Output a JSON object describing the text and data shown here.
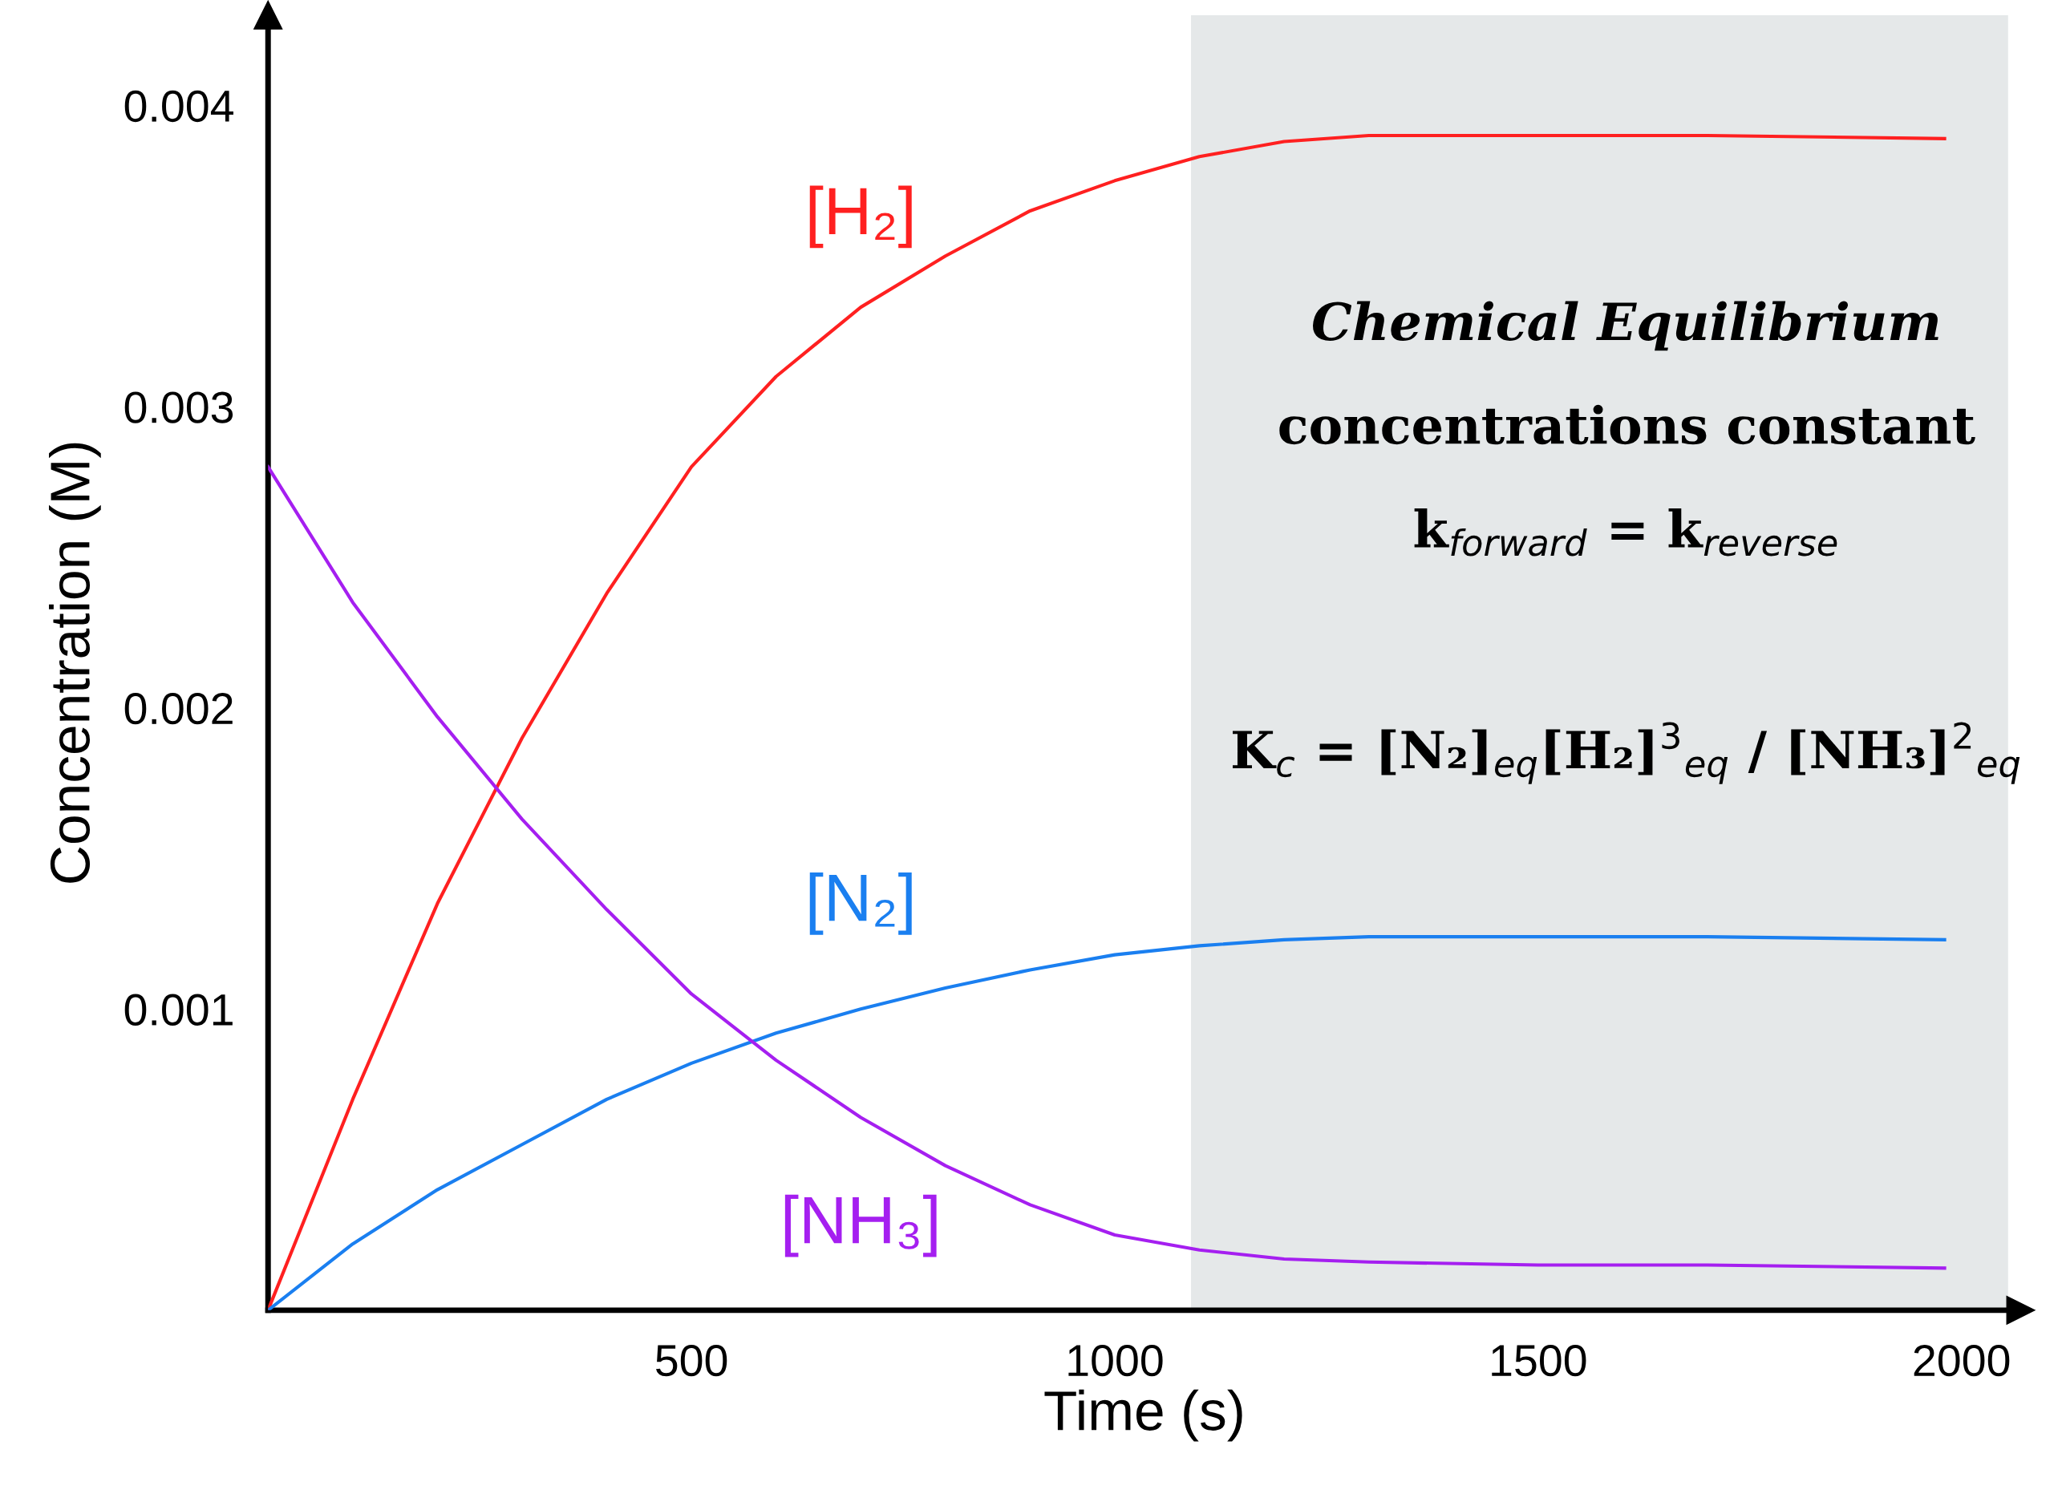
{
  "chart_data": {
    "type": "line",
    "xlabel": "Time (s)",
    "ylabel": "Concentration (M)",
    "x": [
      0,
      100,
      200,
      300,
      400,
      500,
      600,
      700,
      800,
      900,
      1000,
      1100,
      1200,
      1300,
      1500,
      1700,
      1980
    ],
    "series": [
      {
        "name": "[H₂]",
        "color": "#ff2020",
        "values": [
          0,
          0.0007,
          0.00135,
          0.0019,
          0.00238,
          0.0028,
          0.0031,
          0.00333,
          0.0035,
          0.00365,
          0.00375,
          0.00383,
          0.00388,
          0.0039,
          0.0039,
          0.0039,
          0.00389
        ]
      },
      {
        "name": "[N₂]",
        "color": "#1a7ff0",
        "values": [
          0,
          0.00022,
          0.0004,
          0.00055,
          0.0007,
          0.00082,
          0.00092,
          0.001,
          0.00107,
          0.00113,
          0.00118,
          0.00121,
          0.00123,
          0.00124,
          0.00124,
          0.00124,
          0.00123
        ]
      },
      {
        "name": "[NH₃]",
        "color": "#a51ff0",
        "values": [
          0.0028,
          0.00235,
          0.00197,
          0.00163,
          0.00133,
          0.00105,
          0.00083,
          0.00064,
          0.00048,
          0.00035,
          0.00025,
          0.0002,
          0.00017,
          0.00016,
          0.00015,
          0.00015,
          0.00014
        ]
      }
    ],
    "xlim": [
      0,
      2070
    ],
    "ylim": [
      0,
      0.0043
    ],
    "xticks": [
      500,
      1000,
      1500,
      2000
    ],
    "yticks": [
      0.001,
      0.002,
      0.003,
      0.004
    ],
    "bands": [
      {
        "axis": "x",
        "from": 1090,
        "to": 2055,
        "color": "#e5e8e9"
      }
    ],
    "annotations": [
      "Chemical Equilibrium",
      "concentrations constant",
      "k$_{forward}$ = k$_{reverse}$",
      "K$_{c}$ = [N₂]$_{eq}$[H₂]$^{3}$$_{eq}$ / [NH₃]$^{2}$$_{eq}$"
    ],
    "grid": false,
    "legend": false,
    "marker": "none",
    "line_style": "solid"
  }
}
